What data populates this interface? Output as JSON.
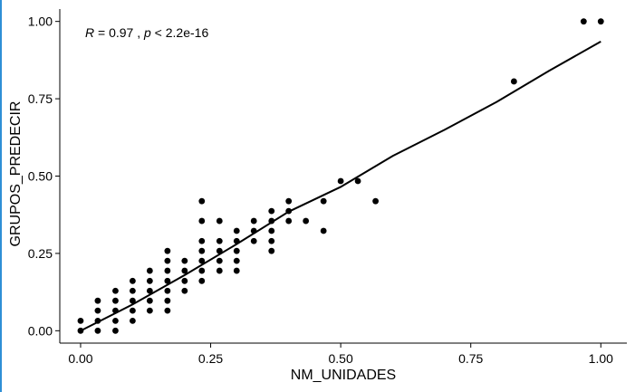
{
  "chart_data": {
    "type": "scatter",
    "title": "",
    "xlabel": "NM_UNIDADES",
    "ylabel": "GRUPOS_PREDECIR",
    "xlim": [
      -0.04,
      1.05
    ],
    "ylim": [
      -0.04,
      1.04
    ],
    "x_ticks": [
      0.0,
      0.25,
      0.5,
      0.75,
      1.0
    ],
    "x_tick_labels": [
      "0.00",
      "0.25",
      "0.50",
      "0.75",
      "1.00"
    ],
    "y_ticks": [
      0.0,
      0.25,
      0.5,
      0.75,
      1.0
    ],
    "y_tick_labels": [
      "0.00",
      "0.25",
      "0.50",
      "0.75",
      "1.00"
    ],
    "grid": false,
    "annotation": {
      "r_label": "R",
      "r_text": " = 0.97 , ",
      "p_label": "p",
      "p_text": " < 2.2e-16"
    },
    "fit_line": [
      {
        "x": 0.0,
        "y": 0.0
      },
      {
        "x": 0.1,
        "y": 0.085
      },
      {
        "x": 0.2,
        "y": 0.18
      },
      {
        "x": 0.3,
        "y": 0.28
      },
      {
        "x": 0.4,
        "y": 0.385
      },
      {
        "x": 0.5,
        "y": 0.465
      },
      {
        "x": 0.6,
        "y": 0.565
      },
      {
        "x": 0.7,
        "y": 0.65
      },
      {
        "x": 0.8,
        "y": 0.74
      },
      {
        "x": 0.9,
        "y": 0.84
      },
      {
        "x": 1.0,
        "y": 0.935
      }
    ],
    "points": [
      {
        "x": 0.0,
        "y": 0.0
      },
      {
        "x": 0.0,
        "y": 0.032
      },
      {
        "x": 0.033,
        "y": 0.0
      },
      {
        "x": 0.033,
        "y": 0.032
      },
      {
        "x": 0.033,
        "y": 0.065
      },
      {
        "x": 0.033,
        "y": 0.097
      },
      {
        "x": 0.067,
        "y": 0.0
      },
      {
        "x": 0.067,
        "y": 0.032
      },
      {
        "x": 0.067,
        "y": 0.065
      },
      {
        "x": 0.067,
        "y": 0.097
      },
      {
        "x": 0.067,
        "y": 0.129
      },
      {
        "x": 0.1,
        "y": 0.032
      },
      {
        "x": 0.1,
        "y": 0.065
      },
      {
        "x": 0.1,
        "y": 0.097
      },
      {
        "x": 0.1,
        "y": 0.129
      },
      {
        "x": 0.1,
        "y": 0.161
      },
      {
        "x": 0.133,
        "y": 0.065
      },
      {
        "x": 0.133,
        "y": 0.097
      },
      {
        "x": 0.133,
        "y": 0.129
      },
      {
        "x": 0.133,
        "y": 0.161
      },
      {
        "x": 0.133,
        "y": 0.194
      },
      {
        "x": 0.167,
        "y": 0.065
      },
      {
        "x": 0.167,
        "y": 0.097
      },
      {
        "x": 0.167,
        "y": 0.129
      },
      {
        "x": 0.167,
        "y": 0.161
      },
      {
        "x": 0.167,
        "y": 0.194
      },
      {
        "x": 0.167,
        "y": 0.226
      },
      {
        "x": 0.167,
        "y": 0.258
      },
      {
        "x": 0.2,
        "y": 0.129
      },
      {
        "x": 0.2,
        "y": 0.161
      },
      {
        "x": 0.2,
        "y": 0.194
      },
      {
        "x": 0.2,
        "y": 0.226
      },
      {
        "x": 0.233,
        "y": 0.161
      },
      {
        "x": 0.233,
        "y": 0.194
      },
      {
        "x": 0.233,
        "y": 0.226
      },
      {
        "x": 0.233,
        "y": 0.258
      },
      {
        "x": 0.233,
        "y": 0.29
      },
      {
        "x": 0.233,
        "y": 0.355
      },
      {
        "x": 0.233,
        "y": 0.419
      },
      {
        "x": 0.267,
        "y": 0.194
      },
      {
        "x": 0.267,
        "y": 0.226
      },
      {
        "x": 0.267,
        "y": 0.258
      },
      {
        "x": 0.267,
        "y": 0.29
      },
      {
        "x": 0.267,
        "y": 0.355
      },
      {
        "x": 0.3,
        "y": 0.194
      },
      {
        "x": 0.3,
        "y": 0.226
      },
      {
        "x": 0.3,
        "y": 0.258
      },
      {
        "x": 0.3,
        "y": 0.29
      },
      {
        "x": 0.3,
        "y": 0.323
      },
      {
        "x": 0.333,
        "y": 0.29
      },
      {
        "x": 0.333,
        "y": 0.323
      },
      {
        "x": 0.333,
        "y": 0.355
      },
      {
        "x": 0.367,
        "y": 0.258
      },
      {
        "x": 0.367,
        "y": 0.29
      },
      {
        "x": 0.367,
        "y": 0.323
      },
      {
        "x": 0.367,
        "y": 0.355
      },
      {
        "x": 0.367,
        "y": 0.387
      },
      {
        "x": 0.4,
        "y": 0.355
      },
      {
        "x": 0.4,
        "y": 0.387
      },
      {
        "x": 0.4,
        "y": 0.419
      },
      {
        "x": 0.433,
        "y": 0.355
      },
      {
        "x": 0.467,
        "y": 0.323
      },
      {
        "x": 0.467,
        "y": 0.419
      },
      {
        "x": 0.5,
        "y": 0.484
      },
      {
        "x": 0.533,
        "y": 0.484
      },
      {
        "x": 0.567,
        "y": 0.419
      },
      {
        "x": 0.833,
        "y": 0.806
      },
      {
        "x": 0.967,
        "y": 1.0
      },
      {
        "x": 1.0,
        "y": 1.0
      }
    ]
  }
}
